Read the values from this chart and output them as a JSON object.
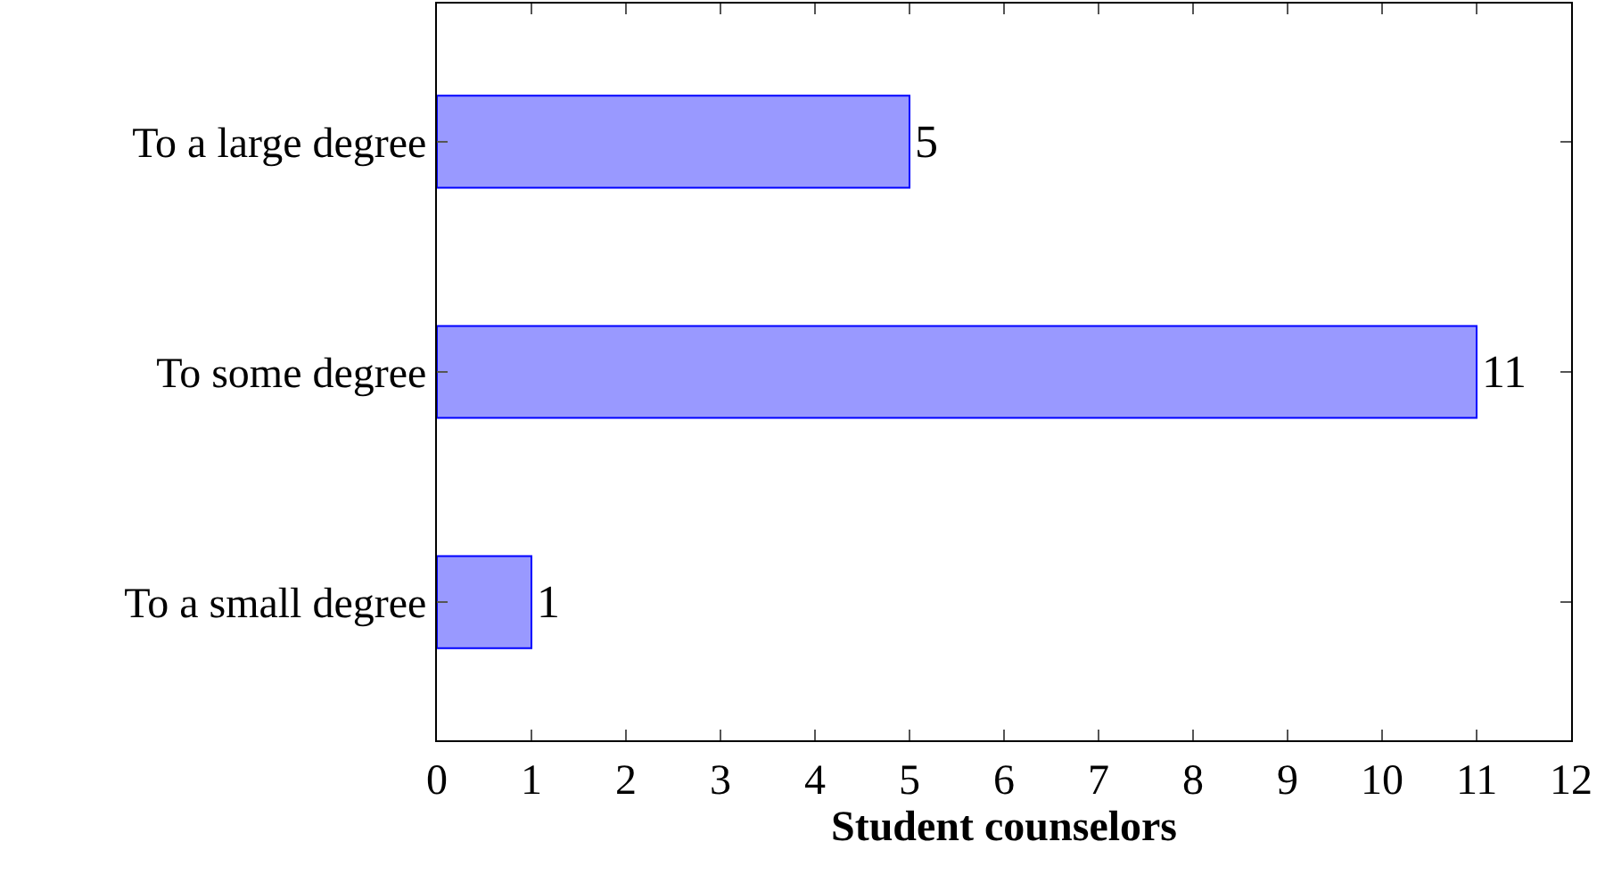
{
  "chart_data": {
    "type": "bar",
    "orientation": "horizontal",
    "categories": [
      "To a large degree",
      "To some degree",
      "To a small degree"
    ],
    "values": [
      5,
      11,
      1
    ],
    "color": "#9999ff",
    "xlabel": "Student counselors",
    "xlim": [
      0,
      12
    ],
    "xticks": [
      0,
      1,
      2,
      3,
      4,
      5,
      6,
      7,
      8,
      9,
      10,
      11,
      12
    ],
    "data_labels": true
  }
}
